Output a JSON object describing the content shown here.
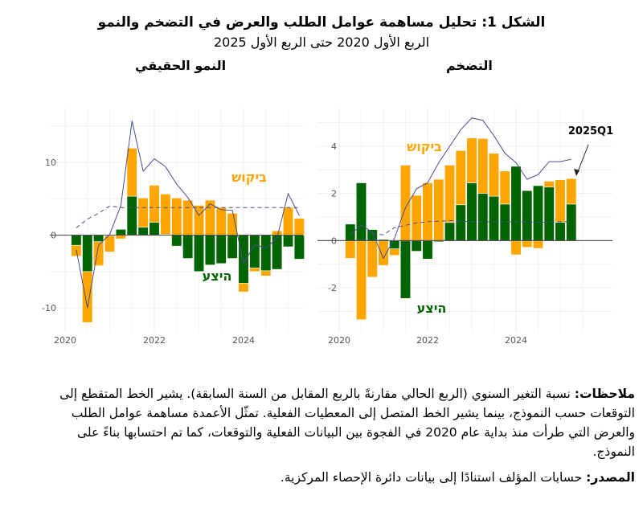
{
  "title": "الشكل 1: تحليل مساهمة عوامل الطلب والعرض في التضخم والنمو",
  "subtitle": "الربع الأول 2020 حتى الربع الأول 2025",
  "notes": {
    "label": "ملاحظات:",
    "text": " نسبة التغير السنوي (الربع الحالي مقارنةً بالربع المقابل من السنة السابقة). يشير الخط المتقطع إلى التوقعات حسب النموذج، بينما يشير الخط المتصل إلى المعطيات الفعلية. تمثّل الأعمدة مساهمة عوامل الطلب والعرض التي طرأت منذ بداية عام 2020 في الفجوة بين البيانات الفعلية والتوقعات، كما تم احتسابها بناءً على النموذج."
  },
  "source": {
    "label": "المصدر:",
    "text": " حسابات المؤلف استنادًا إلى بيانات دائرة الإحصاء المركزية."
  },
  "colors": {
    "demand": "#FFA500",
    "supply": "#006400",
    "line": "#4B4B8F"
  },
  "chart_data": [
    {
      "type": "bar",
      "title": "النمو الحقيقي",
      "x_quarters": [
        "2020Q2",
        "2020Q3",
        "2020Q4",
        "2021Q1",
        "2021Q2",
        "2021Q3",
        "2021Q4",
        "2022Q1",
        "2022Q2",
        "2022Q3",
        "2022Q4",
        "2023Q1",
        "2023Q2",
        "2023Q3",
        "2023Q4",
        "2024Q1",
        "2024Q2",
        "2024Q3",
        "2024Q4",
        "2025Q1",
        "2025Q2"
      ],
      "x_ticks": [
        "2020",
        "2022",
        "2024"
      ],
      "y_ticks": [
        "10",
        "0",
        "-10"
      ],
      "ylim": [
        -13.3,
        17.4
      ],
      "series": [
        {
          "name": "ביקוש",
          "kind": "bar",
          "values": [
            -1.5,
            -7.0,
            -3.3,
            -2.2,
            -0.5,
            6.6,
            4.0,
            5.1,
            5.55,
            5.1,
            4.8,
            4.1,
            4.8,
            3.8,
            3.0,
            -1.2,
            -0.5,
            -0.7,
            0.6,
            3.8,
            2.3
          ]
        },
        {
          "name": "היצע",
          "kind": "bar",
          "values": [
            -1.4,
            -5.0,
            -0.9,
            -0.1,
            0.8,
            5.35,
            1.1,
            1.75,
            0.1,
            -1.5,
            -3.2,
            -5.0,
            -4.1,
            -3.9,
            -3.2,
            -6.6,
            -4.5,
            -4.9,
            -4.7,
            -1.6,
            -3.3
          ]
        },
        {
          "name": "actual",
          "kind": "line",
          "values": [
            -2.0,
            -10.0,
            -1.4,
            0.1,
            4.1,
            15.7,
            8.8,
            10.5,
            9.4,
            7.0,
            5.2,
            2.7,
            4.3,
            3.5,
            3.4,
            -3.9,
            -1.3,
            -1.8,
            -0.4,
            5.7,
            2.7
          ]
        },
        {
          "name": "forecast",
          "kind": "dashed",
          "values": [
            1.0,
            2.2,
            3.0,
            4.0,
            3.8,
            3.8,
            3.8,
            3.8,
            3.8,
            3.8,
            3.8,
            3.8,
            3.8,
            3.8,
            3.8,
            3.8,
            3.8,
            3.8,
            3.8,
            3.8,
            3.8
          ]
        }
      ],
      "annotations": []
    },
    {
      "type": "bar",
      "title": "التضخم",
      "x_quarters": [
        "2020Q2",
        "2020Q3",
        "2020Q4",
        "2021Q1",
        "2021Q2",
        "2021Q3",
        "2021Q4",
        "2022Q1",
        "2022Q2",
        "2022Q3",
        "2022Q4",
        "2023Q1",
        "2023Q2",
        "2023Q3",
        "2023Q4",
        "2024Q1",
        "2024Q2",
        "2024Q3",
        "2024Q4",
        "2025Q1",
        "2025Q2"
      ],
      "x_ticks": [
        "2020",
        "2022",
        "2024"
      ],
      "y_ticks": [
        "4",
        "2",
        "0",
        "-2"
      ],
      "ylim": [
        -3.87,
        5.6
      ],
      "series": [
        {
          "name": "ביקוש",
          "kind": "bar",
          "values": [
            -0.75,
            -3.35,
            -1.55,
            -1.05,
            -0.28,
            3.2,
            1.92,
            2.45,
            2.6,
            2.43,
            2.3,
            1.9,
            2.33,
            1.82,
            1.4,
            -0.6,
            -0.28,
            -0.33,
            0.25,
            1.8,
            1.08
          ]
        },
        {
          "name": "היצע",
          "kind": "bar",
          "values": [
            0.7,
            2.45,
            0.47,
            0.05,
            -0.35,
            -2.45,
            -0.45,
            -0.78,
            -0.05,
            0.77,
            1.52,
            2.45,
            2.0,
            1.88,
            1.55,
            3.15,
            2.12,
            2.33,
            2.27,
            0.78,
            1.55
          ]
        },
        {
          "name": "actual",
          "kind": "line",
          "values": [
            0.25,
            0.67,
            0.35,
            -0.75,
            0.1,
            1.4,
            2.2,
            2.45,
            3.3,
            4.0,
            4.7,
            5.2,
            5.1,
            4.45,
            3.7,
            3.3,
            2.6,
            2.8,
            3.35,
            3.35,
            3.45
          ]
        },
        {
          "name": "forecast",
          "kind": "dashed",
          "values": [
            null,
            null,
            0.3,
            0.25,
            0.55,
            0.65,
            0.75,
            0.8,
            0.82,
            0.85,
            0.82,
            0.8,
            0.8,
            0.8,
            0.8,
            0.8,
            0.78,
            0.78,
            0.78,
            0.8,
            0.8
          ]
        }
      ],
      "annotations": [
        {
          "text": "2025Q1"
        }
      ]
    }
  ]
}
